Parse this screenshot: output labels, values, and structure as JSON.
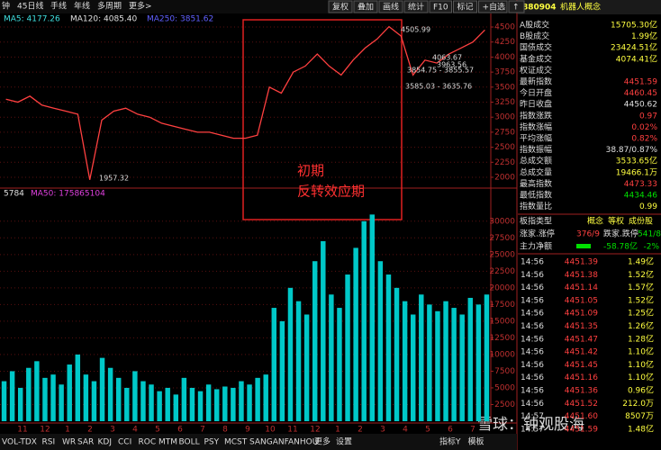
{
  "toolbar": {
    "left": [
      "钟",
      "45日线",
      "手线",
      "年线",
      "多周期",
      "更多>"
    ],
    "right": [
      "复权",
      "叠加",
      "画线",
      "统计",
      "F10",
      "标记",
      "+自选",
      "↑"
    ]
  },
  "price_panel": {
    "type": "line",
    "legend": [
      "MA5: 4177.26",
      "MA120: 4085.40",
      "MA250: 3851.62"
    ],
    "ylim": [
      1850,
      4680
    ],
    "yticks": [
      2000,
      2250,
      2500,
      2750,
      3000,
      3250,
      3500,
      3750,
      4000,
      4250,
      4500
    ],
    "grid": true,
    "color": "#ff4040",
    "values": [
      3300,
      3250,
      3350,
      3200,
      3150,
      3100,
      3050,
      1957.32,
      2950,
      3100,
      3150,
      3050,
      3000,
      2900,
      2850,
      2800,
      2750,
      2750,
      2700,
      2650,
      2650,
      2700,
      3500,
      3400,
      3750,
      3850,
      4050,
      3850,
      3700,
      3950,
      4150,
      4300,
      4505.99,
      4350,
      3700,
      3950,
      3900,
      4050,
      4150,
      4250,
      4451.59
    ],
    "annotations": [
      "4505.99",
      "1957.32",
      "3585.03 - 3635.76",
      "3854.75 - 3855.57",
      "4063.67",
      "3963.56"
    ],
    "highlight": [
      "初期",
      "反转效应期"
    ]
  },
  "volume_panel": {
    "type": "bar",
    "legend": [
      "5784",
      "MA50: 175865104"
    ],
    "ylim": [
      0,
      32400
    ],
    "yticks": [
      2500,
      5000,
      7500,
      10000,
      12500,
      15000,
      17500,
      20000,
      22500,
      25000,
      27500,
      30000
    ],
    "grid": true,
    "color": "#00c8c8",
    "values": [
      6000,
      7500,
      5000,
      8000,
      9000,
      6500,
      7000,
      5500,
      8500,
      10000,
      7000,
      6000,
      9500,
      8000,
      6500,
      5000,
      7500,
      6000,
      5500,
      4500,
      5000,
      4000,
      6500,
      5000,
      4500,
      5500,
      4800,
      5200,
      5000,
      6000,
      5500,
      6500,
      7000,
      17000,
      15000,
      20000,
      18000,
      16000,
      24000,
      27000,
      19000,
      17000,
      22000,
      26000,
      30000,
      31000,
      24000,
      22000,
      20000,
      18000,
      16000,
      19000,
      17500,
      16500,
      18000,
      17000,
      16000,
      18500,
      17500,
      19000
    ]
  },
  "x_axis": {
    "categories": [
      "11",
      "12",
      "1",
      "2",
      "3",
      "4",
      "5",
      "6",
      "7",
      "8",
      "9",
      "10",
      "11",
      "12",
      "1",
      "2",
      "3",
      "4",
      "5",
      "6",
      "7"
    ]
  },
  "tabs": {
    "left": [
      "VOL-TDX",
      "RSI",
      "WR",
      "SAR",
      "KDJ",
      "CCI",
      "ROC",
      "MTM",
      "BOLL",
      "PSY",
      "MCST",
      "SANGANFANHOU",
      "更多",
      "设置"
    ],
    "right": [
      "指标Y",
      "模板"
    ]
  },
  "side_panel": {
    "code": "880904",
    "name": "机器人概念",
    "stats": [
      {
        "label": "A股成交",
        "value": "15705.30亿",
        "color": "#ffff40"
      },
      {
        "label": "B股成交",
        "value": "1.99亿",
        "color": "#ffff40"
      },
      {
        "label": "国债成交",
        "value": "23424.51亿",
        "color": "#ffff40"
      },
      {
        "label": "基金成交",
        "value": "4074.41亿",
        "color": "#ffff40"
      },
      {
        "label": "权证成交",
        "value": null,
        "color": "#ffff40"
      },
      {
        "label": "最新指数",
        "value": "4451.59",
        "color": "#ff4040"
      },
      {
        "label": "今日开盘",
        "value": "4460.45",
        "color": "#ff4040"
      },
      {
        "label": "昨日收盘",
        "value": "4450.62",
        "color": "#e0e0e0"
      },
      {
        "label": "指数涨跌",
        "value": "0.97",
        "color": "#ff4040"
      },
      {
        "label": "指数涨幅",
        "value": "0.02%",
        "color": "#ff4040"
      },
      {
        "label": "平均涨幅",
        "value": "0.82%",
        "color": "#ff4040"
      },
      {
        "label": "指数振幅",
        "value": "38.87/0.87%",
        "color": "#e0e0e0"
      },
      {
        "label": "总成交额",
        "value": "3533.65亿",
        "color": "#ffff40"
      },
      {
        "label": "总成交量",
        "value": "19466.1万",
        "color": "#ffff40"
      },
      {
        "label": "最高指数",
        "value": "4473.33",
        "color": "#ff4040"
      },
      {
        "label": "最低指数",
        "value": "4434.46",
        "color": "#00e000"
      },
      {
        "label": "指数量比",
        "value": "0.99",
        "color": "#ffff40"
      }
    ],
    "board_type": {
      "label": "板指类型",
      "items": [
        "概念",
        "等权",
        "成份股"
      ]
    },
    "breadth": [
      "涨家.涨停",
      "376/9",
      "跌家.跌停",
      "541/8"
    ],
    "main_flow": [
      "主力净额",
      "-58.78亿",
      "-2%"
    ],
    "ticks": [
      [
        "14:56",
        "4451.39",
        "1.49亿"
      ],
      [
        "14:56",
        "4451.38",
        "1.52亿"
      ],
      [
        "14:56",
        "4451.14",
        "1.57亿"
      ],
      [
        "14:56",
        "4451.05",
        "1.52亿"
      ],
      [
        "14:56",
        "4451.09",
        "1.25亿"
      ],
      [
        "14:56",
        "4451.35",
        "1.26亿"
      ],
      [
        "14:56",
        "4451.47",
        "1.28亿"
      ],
      [
        "14:56",
        "4451.42",
        "1.10亿"
      ],
      [
        "14:56",
        "4451.45",
        "1.10亿"
      ],
      [
        "14:56",
        "4451.16",
        "1.10亿"
      ],
      [
        "14:56",
        "4451.36",
        "0.96亿"
      ],
      [
        "14:56",
        "4451.52",
        "212.0万"
      ],
      [
        "14:57",
        "4451.60",
        "8507万"
      ],
      [
        "14:57",
        "4451.59",
        "1.48亿"
      ]
    ]
  },
  "watermark": "雪球：钟观股海"
}
